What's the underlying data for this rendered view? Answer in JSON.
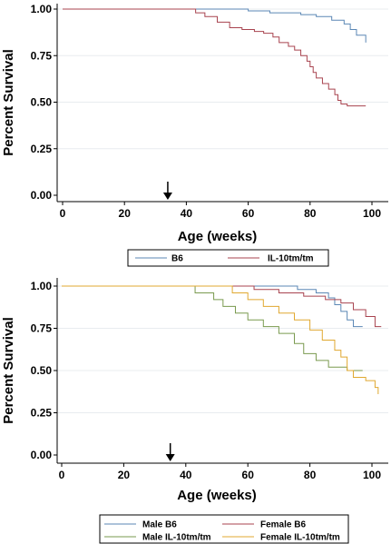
{
  "chart_data": [
    {
      "type": "line",
      "step": true,
      "xlabel": "Age (weeks)",
      "ylabel": "Percent Survival",
      "xlim": [
        0,
        104
      ],
      "ylim": [
        0,
        1
      ],
      "xticks": [
        "0",
        "20",
        "40",
        "60",
        "80",
        "100"
      ],
      "yticks": [
        "0.00",
        "0.25",
        "0.50",
        "0.75",
        "1.00"
      ],
      "grid": "horizontal",
      "legend_position": "bottom",
      "arrow_at_x": 34,
      "series": [
        {
          "name": "B6",
          "color": "#5b87b5",
          "x": [
            0,
            60,
            67,
            77,
            82,
            87,
            91,
            93,
            95,
            98
          ],
          "y": [
            1.0,
            0.99,
            0.98,
            0.97,
            0.96,
            0.94,
            0.92,
            0.89,
            0.86,
            0.82
          ]
        },
        {
          "name": "IL-10tm/tm",
          "color": "#a8434f",
          "x": [
            0,
            43,
            46,
            50,
            54,
            58,
            62,
            65,
            68,
            70,
            73,
            75,
            77,
            79,
            80,
            81,
            82,
            84,
            86,
            88,
            89,
            90,
            92,
            98
          ],
          "y": [
            1.0,
            0.98,
            0.96,
            0.93,
            0.9,
            0.89,
            0.88,
            0.87,
            0.85,
            0.82,
            0.8,
            0.78,
            0.75,
            0.72,
            0.69,
            0.66,
            0.63,
            0.6,
            0.57,
            0.54,
            0.51,
            0.49,
            0.48,
            0.48
          ]
        }
      ]
    },
    {
      "type": "line",
      "step": true,
      "xlabel": "Age (weeks)",
      "ylabel": "Percent Survival",
      "xlim": [
        0,
        104
      ],
      "ylim": [
        0,
        1
      ],
      "xticks": [
        "0",
        "20",
        "40",
        "60",
        "80",
        "100"
      ],
      "yticks": [
        "0.00",
        "0.25",
        "0.50",
        "0.75",
        "1.00"
      ],
      "grid": "horizontal",
      "legend_position": "bottom",
      "arrow_at_x": 35,
      "series": [
        {
          "name": "Male B6",
          "color": "#5b87b5",
          "x": [
            0,
            76,
            82,
            86,
            88,
            90,
            92,
            94,
            97
          ],
          "y": [
            1.0,
            0.98,
            0.96,
            0.93,
            0.89,
            0.85,
            0.8,
            0.76,
            0.76
          ]
        },
        {
          "name": "Female B6",
          "color": "#a8434f",
          "x": [
            0,
            62,
            70,
            78,
            85,
            90,
            94,
            98,
            101,
            103
          ],
          "y": [
            1.0,
            0.98,
            0.96,
            0.94,
            0.92,
            0.9,
            0.86,
            0.82,
            0.76,
            0.76
          ]
        },
        {
          "name": "Male IL-10tm/tm",
          "color": "#7a9a4f",
          "x": [
            0,
            43,
            49,
            52,
            56,
            60,
            65,
            70,
            75,
            78,
            82,
            86,
            92,
            97
          ],
          "y": [
            1.0,
            0.96,
            0.92,
            0.88,
            0.84,
            0.8,
            0.76,
            0.72,
            0.66,
            0.6,
            0.56,
            0.52,
            0.5,
            0.5
          ]
        },
        {
          "name": "Female IL-10tm/tm",
          "color": "#e0a830",
          "x": [
            0,
            55,
            60,
            65,
            70,
            75,
            80,
            84,
            88,
            90,
            92,
            94,
            98,
            101,
            102
          ],
          "y": [
            1.0,
            0.96,
            0.92,
            0.88,
            0.84,
            0.8,
            0.74,
            0.68,
            0.62,
            0.58,
            0.5,
            0.46,
            0.44,
            0.4,
            0.36
          ]
        }
      ]
    }
  ]
}
